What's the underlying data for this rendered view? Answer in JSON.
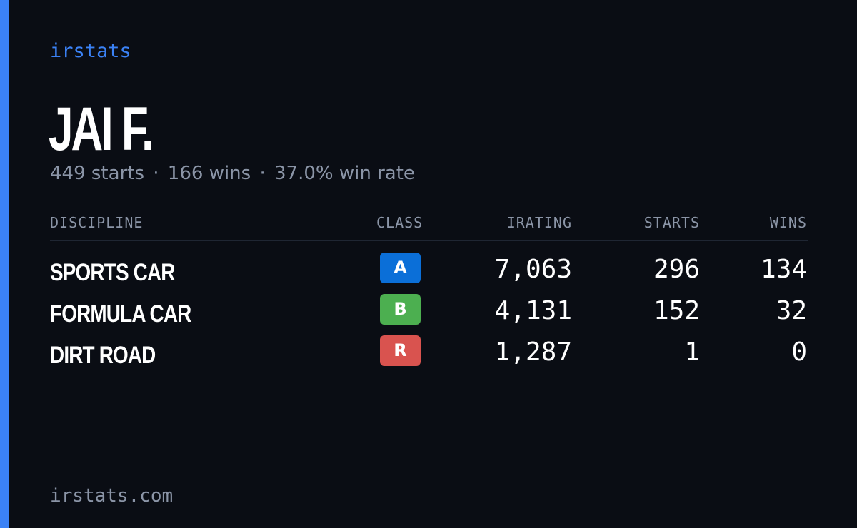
{
  "brand": "irstats",
  "driver": {
    "name": "JAI F.",
    "starts_text": "449 starts",
    "wins_text": "166 wins",
    "winrate_text": "37.0% win rate",
    "separator": "·"
  },
  "table": {
    "headers": {
      "discipline": "DISCIPLINE",
      "class": "CLASS",
      "irating": "IRATING",
      "starts": "STARTS",
      "wins": "WINS"
    },
    "rows": [
      {
        "discipline": "SPORTS CAR",
        "class": "A",
        "class_color": "#0b6fd8",
        "irating": "7,063",
        "starts": "296",
        "wins": "134"
      },
      {
        "discipline": "FORMULA CAR",
        "class": "B",
        "class_color": "#4caf50",
        "irating": "4,131",
        "starts": "152",
        "wins": "32"
      },
      {
        "discipline": "DIRT ROAD",
        "class": "R",
        "class_color": "#d9534f",
        "irating": "1,287",
        "starts": "1",
        "wins": "0"
      }
    ]
  },
  "footer": "irstats.com",
  "colors": {
    "background": "#0a0d14",
    "accent": "#3b82f6",
    "muted": "#8b95a7"
  }
}
